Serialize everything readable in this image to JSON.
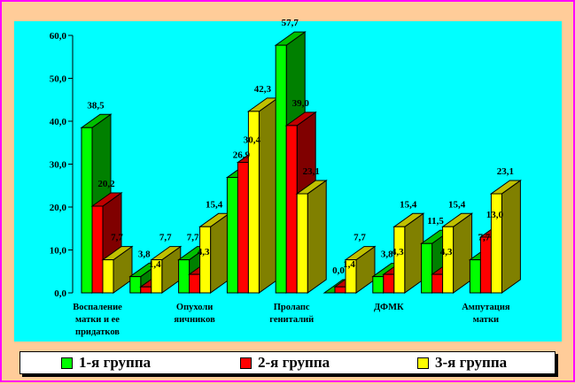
{
  "chart_data": {
    "type": "bar",
    "style": "3d-clustered",
    "title": "",
    "xlabel": "",
    "ylabel": "",
    "ylim": [
      0,
      60
    ],
    "yticks": [
      "0,0",
      "10,0",
      "20,0",
      "30,0",
      "40,0",
      "50,0",
      "60,0"
    ],
    "categories": [
      [
        "Воспаление",
        "матки и ее",
        "придатков"
      ],
      [],
      [
        "Опухоли",
        "яичников"
      ],
      [],
      [
        "Пролапс",
        "гениталий"
      ],
      [],
      [
        "ДФМК"
      ],
      [],
      [
        "Ампутация",
        "матки"
      ]
    ],
    "series": [
      {
        "name": "1-я группа",
        "color": "#00FF00",
        "side": "#008000",
        "top": "#00C000",
        "values": [
          38.5,
          3.8,
          7.7,
          26.9,
          57.7,
          0.0,
          3.8,
          11.5,
          7.7
        ],
        "labels": [
          "38,5",
          "3,8",
          "7,7",
          "26,9",
          "57,7",
          "0,0",
          "3,8",
          "11,5",
          "7,7"
        ]
      },
      {
        "name": "2-я группа",
        "color": "#FF0000",
        "side": "#800000",
        "top": "#C00000",
        "values": [
          20.2,
          1.4,
          4.3,
          30.4,
          39.0,
          1.4,
          4.3,
          4.3,
          13.0
        ],
        "labels": [
          "20,2",
          "1,4",
          "4,3",
          "30,4",
          "39,0",
          "1,4",
          "4,3",
          "4,3",
          "13,0"
        ]
      },
      {
        "name": "3-я группа",
        "color": "#FFFF00",
        "side": "#808000",
        "top": "#C0C000",
        "values": [
          7.7,
          7.7,
          15.4,
          42.3,
          23.1,
          7.7,
          15.4,
          15.4,
          23.1
        ],
        "labels": [
          "7,7",
          "7,7",
          "15,4",
          "42,3",
          "23,1",
          "7,7",
          "15,4",
          "15,4",
          "23,1"
        ]
      }
    ],
    "grid": false,
    "legend_position": "bottom"
  }
}
